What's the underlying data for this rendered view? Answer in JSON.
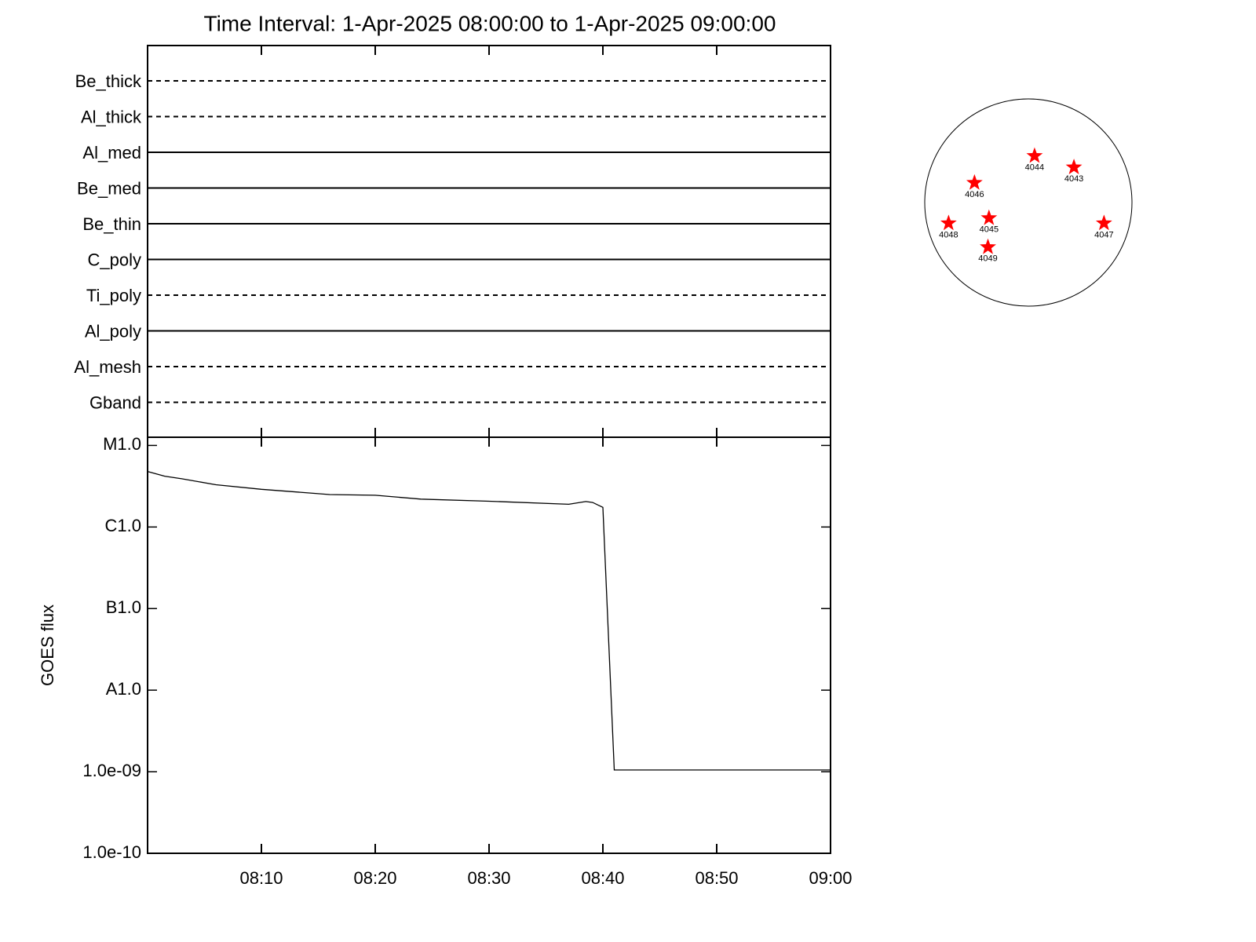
{
  "chart_data": [
    {
      "type": "filter-timeline",
      "title": "Time Interval:  1-Apr-2025 08:00:00 to  1-Apr-2025 09:00:00",
      "categories": [
        "Be_thick",
        "Al_thick",
        "Al_med",
        "Be_med",
        "Be_thin",
        "C_poly",
        "Ti_poly",
        "Al_poly",
        "Al_mesh",
        "Gband"
      ],
      "line_styles": [
        "dashed",
        "dashed",
        "solid",
        "solid",
        "solid",
        "solid",
        "dashed",
        "solid",
        "dashed",
        "dashed"
      ],
      "color": "#000000"
    },
    {
      "type": "line",
      "ylabel": "GOES flux",
      "log_y": true,
      "x": [
        0,
        1.5,
        3,
        6,
        10,
        16,
        20,
        24,
        30,
        37,
        38.5,
        39.1,
        40,
        41,
        60
      ],
      "series": [
        {
          "color": "#000000",
          "values": [
            4.8e-06,
            4.2e-06,
            3.9e-06,
            3.3e-06,
            2.9e-06,
            2.5e-06,
            2.45e-06,
            2.2e-06,
            2.07e-06,
            1.9e-06,
            2.05e-06,
            2e-06,
            1.74e-06,
            1.05e-09,
            1.05e-09
          ]
        }
      ],
      "xlim": [
        0,
        60
      ],
      "xticks": [
        {
          "value": 10,
          "label": "08:10"
        },
        {
          "value": 20,
          "label": "08:20"
        },
        {
          "value": 30,
          "label": "08:30"
        },
        {
          "value": 40,
          "label": "08:40"
        },
        {
          "value": 50,
          "label": "08:50"
        },
        {
          "value": 60,
          "label": "09:00"
        }
      ],
      "ylim": [
        1e-10,
        1.26e-05
      ],
      "yticks": [
        {
          "value": 1e-10,
          "label": "1.0e-10"
        },
        {
          "value": 1e-09,
          "label": "1.0e-09"
        },
        {
          "value": 1e-08,
          "label": "A1.0"
        },
        {
          "value": 1e-07,
          "label": "B1.0"
        },
        {
          "value": 1e-06,
          "label": "C1.0"
        },
        {
          "value": 1e-05,
          "label": "M1.0"
        }
      ]
    },
    {
      "type": "disk",
      "x": [
        0.06,
        0.44,
        -0.52,
        -0.38,
        -0.77,
        0.73,
        -0.39
      ],
      "values": [
        0.45,
        0.34,
        0.19,
        -0.15,
        -0.2,
        -0.2,
        -0.43
      ],
      "labels": [
        "4044",
        "4043",
        "4046",
        "4045",
        "4048",
        "4047",
        "4049"
      ],
      "color": "#ff0000",
      "xlim": [
        -1,
        1
      ],
      "ylim": [
        -1,
        1
      ]
    }
  ]
}
